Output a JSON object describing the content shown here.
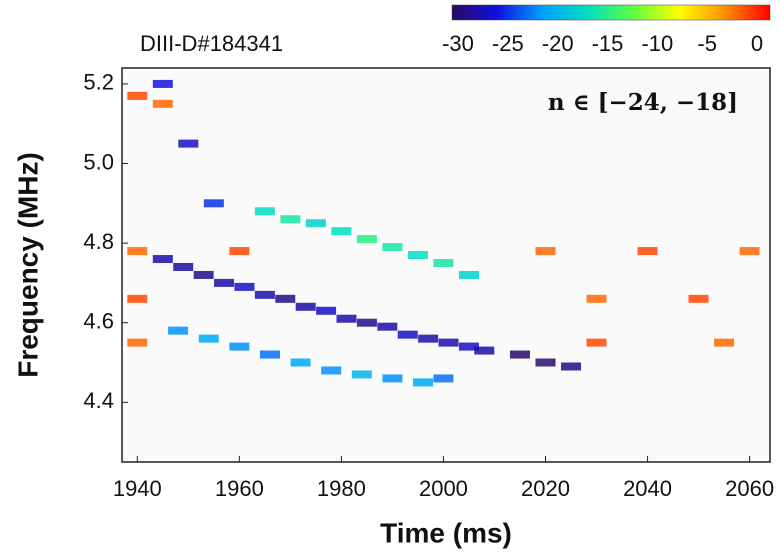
{
  "chart_data": {
    "type": "spectrogram",
    "shot_label": "DIII-D#184341",
    "annotation": "n ∈ [−24, −18]",
    "x_label": "Time (ms)",
    "y_label": "Frequency (MHz)",
    "xlim": [
      1937,
      2064
    ],
    "xticks": [
      1940,
      1960,
      1980,
      2000,
      2020,
      2040,
      2060
    ],
    "ylim": [
      4.25,
      5.24
    ],
    "yticks": [
      4.4,
      4.6,
      4.8,
      {
        "value": 5,
        "label": "5.0"
      },
      5.2
    ],
    "clim": [
      -30.6,
      1.3
    ],
    "cticks": [
      -30,
      -25,
      -20,
      -15,
      -10,
      -5,
      0
    ],
    "colormap": [
      "#2a0a5e",
      "#1010e0",
      "#00a0ff",
      "#00e0c0",
      "#60ff40",
      "#ffff00",
      "#ff9000",
      "#ff0000"
    ],
    "x": [
      1945,
      1949,
      1953,
      1957,
      1961,
      1965,
      1969,
      1973,
      1977,
      1981,
      1985,
      1989,
      1993,
      1997,
      2001,
      2005,
      2008,
      1948,
      1954,
      1960,
      1966,
      1972,
      1978,
      1984,
      1990,
      1996,
      2000,
      1965,
      1970,
      1975,
      1980,
      1985,
      1990,
      1995,
      2000,
      2005,
      1945,
      1950,
      1955,
      2015,
      2020,
      2025,
      1940,
      1960,
      2020,
      2040,
      2060,
      1940,
      2030,
      2050,
      1940,
      2030,
      2055,
      1940,
      1945
    ],
    "y": [
      4.76,
      4.74,
      4.72,
      4.7,
      4.69,
      4.67,
      4.66,
      4.64,
      4.63,
      4.61,
      4.6,
      4.59,
      4.57,
      4.56,
      4.55,
      4.54,
      4.53,
      4.58,
      4.56,
      4.54,
      4.52,
      4.5,
      4.48,
      4.47,
      4.46,
      4.45,
      4.46,
      4.88,
      4.86,
      4.85,
      4.83,
      4.81,
      4.79,
      4.77,
      4.75,
      4.72,
      5.2,
      5.05,
      4.9,
      4.52,
      4.5,
      4.49,
      4.78,
      4.78,
      4.78,
      4.78,
      4.78,
      4.66,
      4.66,
      4.66,
      4.55,
      4.55,
      4.55,
      5.17,
      5.15
    ],
    "values": [
      -28,
      -28,
      -29,
      -28,
      -27,
      -28,
      -29,
      -28,
      -27,
      -28,
      -29,
      -28,
      -27,
      -28,
      -28,
      -27,
      -28,
      -22,
      -21,
      -22,
      -23,
      -21,
      -22,
      -20,
      -22,
      -21,
      -23,
      -17,
      -16,
      -18,
      -17,
      -15,
      -16,
      -17,
      -16,
      -18,
      -26,
      -27,
      -25,
      -30,
      -30,
      -29,
      -2,
      -1,
      -2,
      -1,
      -2,
      -1,
      -2,
      -1,
      -2,
      -1,
      -2,
      -1,
      -2
    ]
  }
}
